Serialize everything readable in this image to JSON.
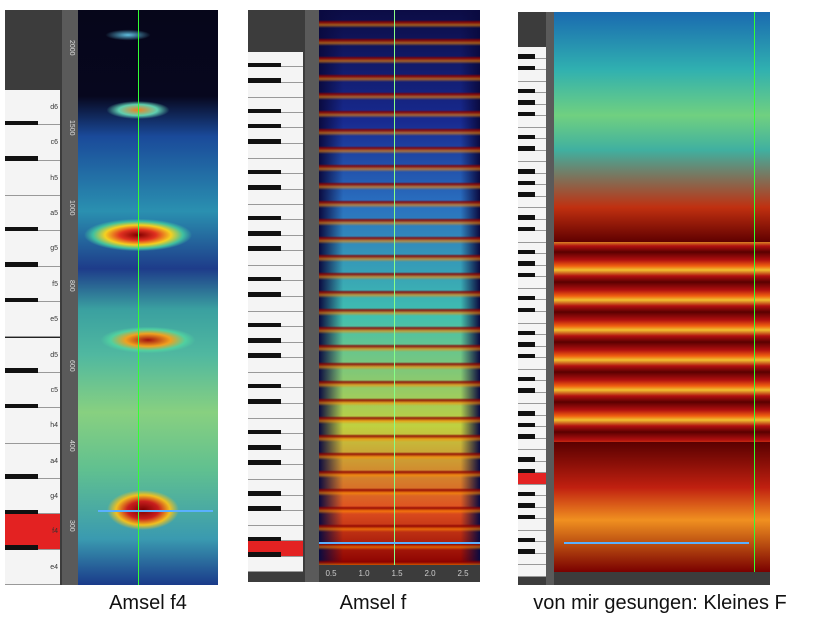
{
  "panels": [
    {
      "caption": "Amsel f4",
      "key_labels": [
        "d6",
        "c6",
        "h5",
        "a5",
        "g5",
        "f5",
        "e5",
        "d5",
        "c5",
        "h4",
        "a4",
        "g4",
        "f4",
        "e4"
      ],
      "axis_labels": [
        "2000",
        "1500",
        "1000",
        "800",
        "600",
        "400",
        "300"
      ]
    },
    {
      "caption": "Amsel f",
      "x_ticks": [
        "0.5",
        "1.0",
        "1.5",
        "2.0",
        "2.5"
      ]
    },
    {
      "caption": "von mir gesungen: Kleines F"
    }
  ]
}
